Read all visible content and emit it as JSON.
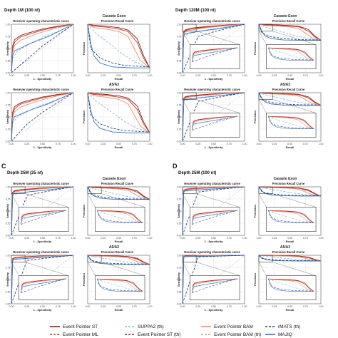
{
  "figure": {
    "panels": [
      {
        "letter": "",
        "depth_label": "Depth 1M (100 nt)",
        "zoomed": false
      },
      {
        "letter": "",
        "depth_label": "Depth 120M (100 nt)",
        "zoomed": true
      },
      {
        "letter": "C",
        "depth_label": "Depth 25M (25 nt)",
        "zoomed": true
      },
      {
        "letter": "D",
        "depth_label": "Depth 25M (100 nt)",
        "zoomed": true
      }
    ],
    "event_types": [
      "Cassete Exon",
      "A5/A3"
    ],
    "roc_title": "Receiver operating characteristic curve",
    "pr_title": "Precision Recall Curve",
    "roc_xlabel": "1 - Specificity",
    "roc_ylabel": "Sensitivity",
    "pr_xlabel": "Recall",
    "pr_ylabel": "Precision",
    "ticks": [
      "0.00",
      "0.25",
      "0.50",
      "0.75",
      "1.00"
    ],
    "legend": [
      {
        "label": "Event Pointer ST",
        "color": "#8b1a1a",
        "dash": "solid"
      },
      {
        "label": "SUPPA2 (th)",
        "color": "#8fb8d8",
        "dash": "dashed"
      },
      {
        "label": "Event Pointer BAM",
        "color": "#f28c6c",
        "dash": "solid"
      },
      {
        "label": "rMATS (th)",
        "color": "#1f3f7a",
        "dash": "dashed"
      },
      {
        "label": "Event Pointer ML",
        "color": "#c0392b",
        "dash": "dashed"
      },
      {
        "label": "Event Pointer ST (th)",
        "color": "#8b1a1a",
        "dash": "dashed"
      },
      {
        "label": "Event Pointer BAM (th)",
        "color": "#f28c6c",
        "dash": "dashed"
      },
      {
        "label": "MAJIQ",
        "color": "#2e6fc0",
        "dash": "solid"
      }
    ]
  },
  "chart_data": {
    "type": "line",
    "curve_families": {
      "roc": [
        {
          "color": "#8b1a1a",
          "x": [
            0,
            0.02,
            0.05,
            0.15,
            0.3,
            0.5,
            0.75,
            1
          ],
          "y": [
            0,
            0.55,
            0.68,
            0.77,
            0.83,
            0.9,
            0.96,
            1
          ]
        },
        {
          "color": "#c0392b",
          "x": [
            0,
            0.02,
            0.05,
            0.15,
            0.3,
            0.5,
            0.75,
            1
          ],
          "y": [
            0,
            0.5,
            0.63,
            0.74,
            0.8,
            0.88,
            0.95,
            1
          ]
        },
        {
          "color": "#f28c6c",
          "x": [
            0,
            0.02,
            0.05,
            0.15,
            0.3,
            0.5,
            0.75,
            1
          ],
          "y": [
            0,
            0.42,
            0.56,
            0.67,
            0.75,
            0.84,
            0.93,
            1
          ]
        },
        {
          "color": "#8fb8d8",
          "x": [
            0,
            0.02,
            0.1,
            0.3,
            0.5,
            0.75,
            1
          ],
          "y": [
            0,
            0.3,
            0.45,
            0.6,
            0.72,
            0.85,
            1
          ]
        },
        {
          "color": "#2e6fc0",
          "x": [
            0,
            0.02,
            0.05,
            0.3,
            0.6,
            1
          ],
          "y": [
            0,
            0.35,
            0.45,
            0.6,
            0.75,
            1
          ]
        },
        {
          "color": "#1f3f7a",
          "x": [
            0,
            0.25,
            0.5,
            0.75,
            1
          ],
          "y": [
            0,
            0.28,
            0.55,
            0.78,
            1
          ]
        }
      ],
      "pr": [
        {
          "color": "#8b1a1a",
          "x": [
            0,
            0.1,
            0.3,
            0.5,
            0.65,
            0.8,
            0.9,
            1
          ],
          "y": [
            1,
            0.98,
            0.96,
            0.93,
            0.88,
            0.7,
            0.35,
            0.1
          ]
        },
        {
          "color": "#c0392b",
          "x": [
            0,
            0.1,
            0.3,
            0.5,
            0.65,
            0.8,
            0.9,
            1
          ],
          "y": [
            1,
            0.96,
            0.94,
            0.9,
            0.85,
            0.62,
            0.3,
            0.1
          ]
        },
        {
          "color": "#f28c6c",
          "x": [
            0,
            0.1,
            0.3,
            0.5,
            0.65,
            0.75,
            0.85,
            1
          ],
          "y": [
            1,
            0.93,
            0.9,
            0.85,
            0.75,
            0.5,
            0.25,
            0.1
          ]
        },
        {
          "color": "#8fb8d8",
          "x": [
            0,
            0.1,
            0.25,
            0.4,
            0.6,
            0.8,
            1
          ],
          "y": [
            1,
            0.85,
            0.7,
            0.55,
            0.35,
            0.2,
            0.1
          ]
        },
        {
          "color": "#2e6fc0",
          "x": [
            0,
            0.05,
            0.1,
            0.2,
            0.4,
            0.7,
            1
          ],
          "y": [
            1,
            0.6,
            0.35,
            0.2,
            0.12,
            0.1,
            0.1
          ]
        },
        {
          "color": "#1f3f7a",
          "x": [
            0,
            0.05,
            0.2,
            0.4,
            0.6,
            1
          ],
          "y": [
            1,
            0.5,
            0.3,
            0.2,
            0.15,
            0.12
          ]
        }
      ]
    },
    "xlim": [
      0,
      1
    ],
    "ylim": [
      0,
      1
    ],
    "grid": true
  }
}
